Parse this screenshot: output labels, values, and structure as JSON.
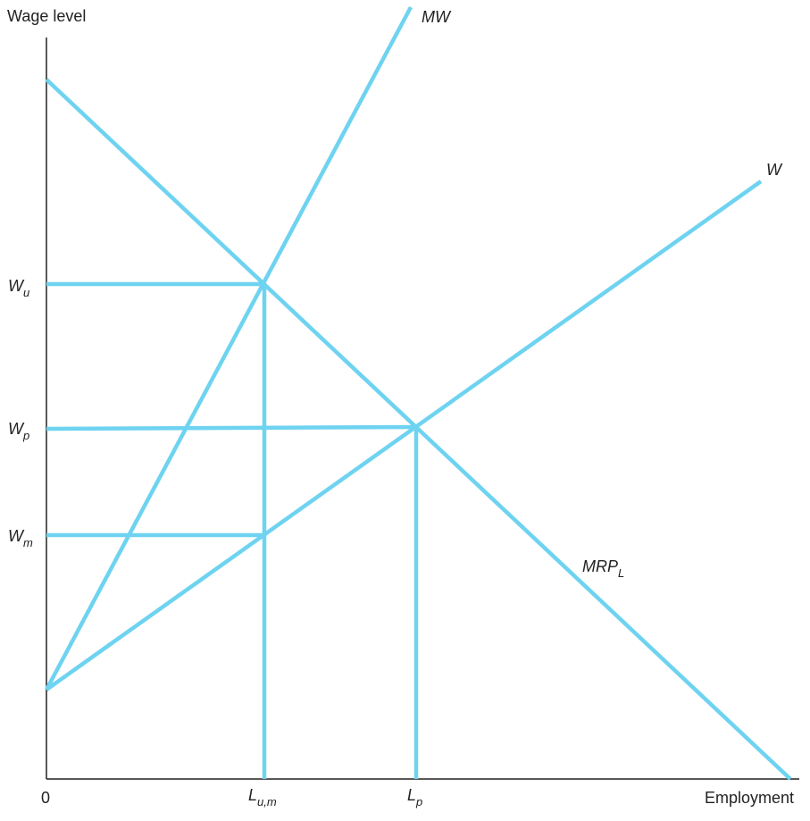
{
  "axes": {
    "y_label": "Wage level",
    "x_label": "Employment",
    "origin_label": "0"
  },
  "curves": {
    "mw": "MW",
    "w": "W",
    "mrp_main": "MRP",
    "mrp_sub": "L"
  },
  "y_ticks": {
    "wu_main": "W",
    "wu_sub": "u",
    "wp_main": "W",
    "wp_sub": "p",
    "wm_main": "W",
    "wm_sub": "m"
  },
  "x_ticks": {
    "lum_main": "L",
    "lum_sub": "u,m",
    "lp_main": "L",
    "lp_sub": "p"
  },
  "colors": {
    "line": "#6ed3f0",
    "axis": "#222222",
    "text": "#222222"
  }
}
